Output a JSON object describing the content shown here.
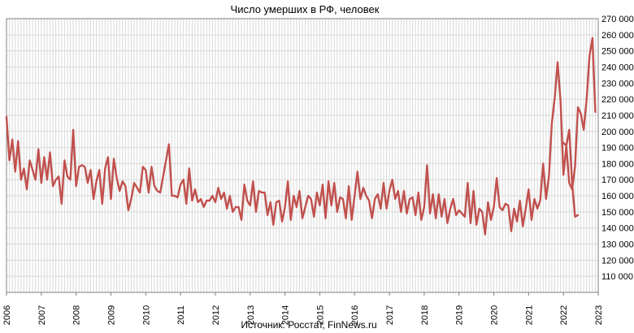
{
  "chart_data": {
    "type": "line",
    "title": "Число умерших в РФ, человек",
    "source": "Источник: Росстат, FinNews.ru",
    "xlabel": "",
    "ylabel": "",
    "x_range": [
      2006,
      2023
    ],
    "ylim": [
      100000,
      270000
    ],
    "y_ticks": [
      "110 000",
      "120 000",
      "130 000",
      "140 000",
      "150 000",
      "160 000",
      "170 000",
      "180 000",
      "190 000",
      "200 000",
      "210 000",
      "220 000",
      "230 000",
      "240 000",
      "250 000",
      "260 000",
      "270 000"
    ],
    "x_ticks": [
      "2006",
      "2007",
      "2008",
      "2009",
      "2010",
      "2011",
      "2012",
      "2013",
      "2014",
      "2015",
      "2016",
      "2017",
      "2018",
      "2019",
      "2020",
      "2021",
      "2022",
      "2023"
    ],
    "grid": true,
    "legend": "none",
    "line_color": "#c0504d",
    "series": [
      {
        "start": "2006-01",
        "frequency": "monthly",
        "values": [
          209000,
          182000,
          195000,
          175000,
          194000,
          170000,
          177000,
          164000,
          182000,
          176000,
          170000,
          189000,
          168000,
          184000,
          170000,
          187000,
          166000,
          170000,
          172000,
          155000,
          182000,
          172000,
          170000,
          201000,
          166000,
          178000,
          179000,
          178000,
          168000,
          176000,
          158000,
          169000,
          176000,
          155000,
          177000,
          184000,
          158000,
          183000,
          171000,
          163000,
          169000,
          166000,
          151000,
          158000,
          168000,
          165000,
          162000,
          178000,
          176000,
          162000,
          178000,
          166000,
          163000,
          162000,
          172000,
          182000,
          192000,
          160000,
          160000,
          159000,
          167000,
          170000,
          155000,
          177000,
          157000,
          164000,
          156000,
          158000,
          153000,
          157000,
          157000,
          160000,
          156000,
          165000,
          158000,
          162000,
          152000,
          160000,
          150000,
          153000,
          153000,
          145000,
          167000,
          157000,
          154000,
          169000,
          150000,
          163000,
          162000,
          162000,
          148000,
          156000,
          142000,
          156000,
          157000,
          144000,
          153000,
          169000,
          145000,
          160000,
          153000,
          163000,
          146000,
          153000,
          160000,
          158000,
          147000,
          162000,
          154000,
          167000,
          146000,
          169000,
          154000,
          168000,
          150000,
          159000,
          158000,
          146000,
          166000,
          145000,
          160000,
          175000,
          158000,
          165000,
          160000,
          157000,
          146000,
          158000,
          161000,
          152000,
          168000,
          152000,
          163000,
          170000,
          158000,
          163000,
          150000,
          163000,
          149000,
          158000,
          159000,
          148000,
          162000,
          145000,
          153000,
          179000,
          149000,
          161000,
          146000,
          161000,
          147000,
          158000,
          143000,
          152000,
          158000,
          148000,
          151000,
          149000,
          147000,
          168000,
          143000,
          163000,
          142000,
          152000,
          150000,
          136000,
          156000,
          145000,
          153000,
          171000,
          153000,
          151000,
          155000,
          154000,
          138000,
          152000,
          144000,
          157000,
          141000,
          152000,
          164000,
          145000,
          158000,
          152000,
          157000,
          180000,
          158000,
          172000,
          205000,
          221000,
          243000,
          219000,
          173000,
          191000,
          168000,
          164000,
          178000,
          215000,
          211000,
          201000,
          220000,
          247000,
          258000,
          212000
        ]
      },
      {
        "start": "2022-01",
        "frequency": "monthly",
        "values": [
          193000,
          191000,
          201000,
          168000,
          147000,
          148000
        ]
      }
    ]
  }
}
